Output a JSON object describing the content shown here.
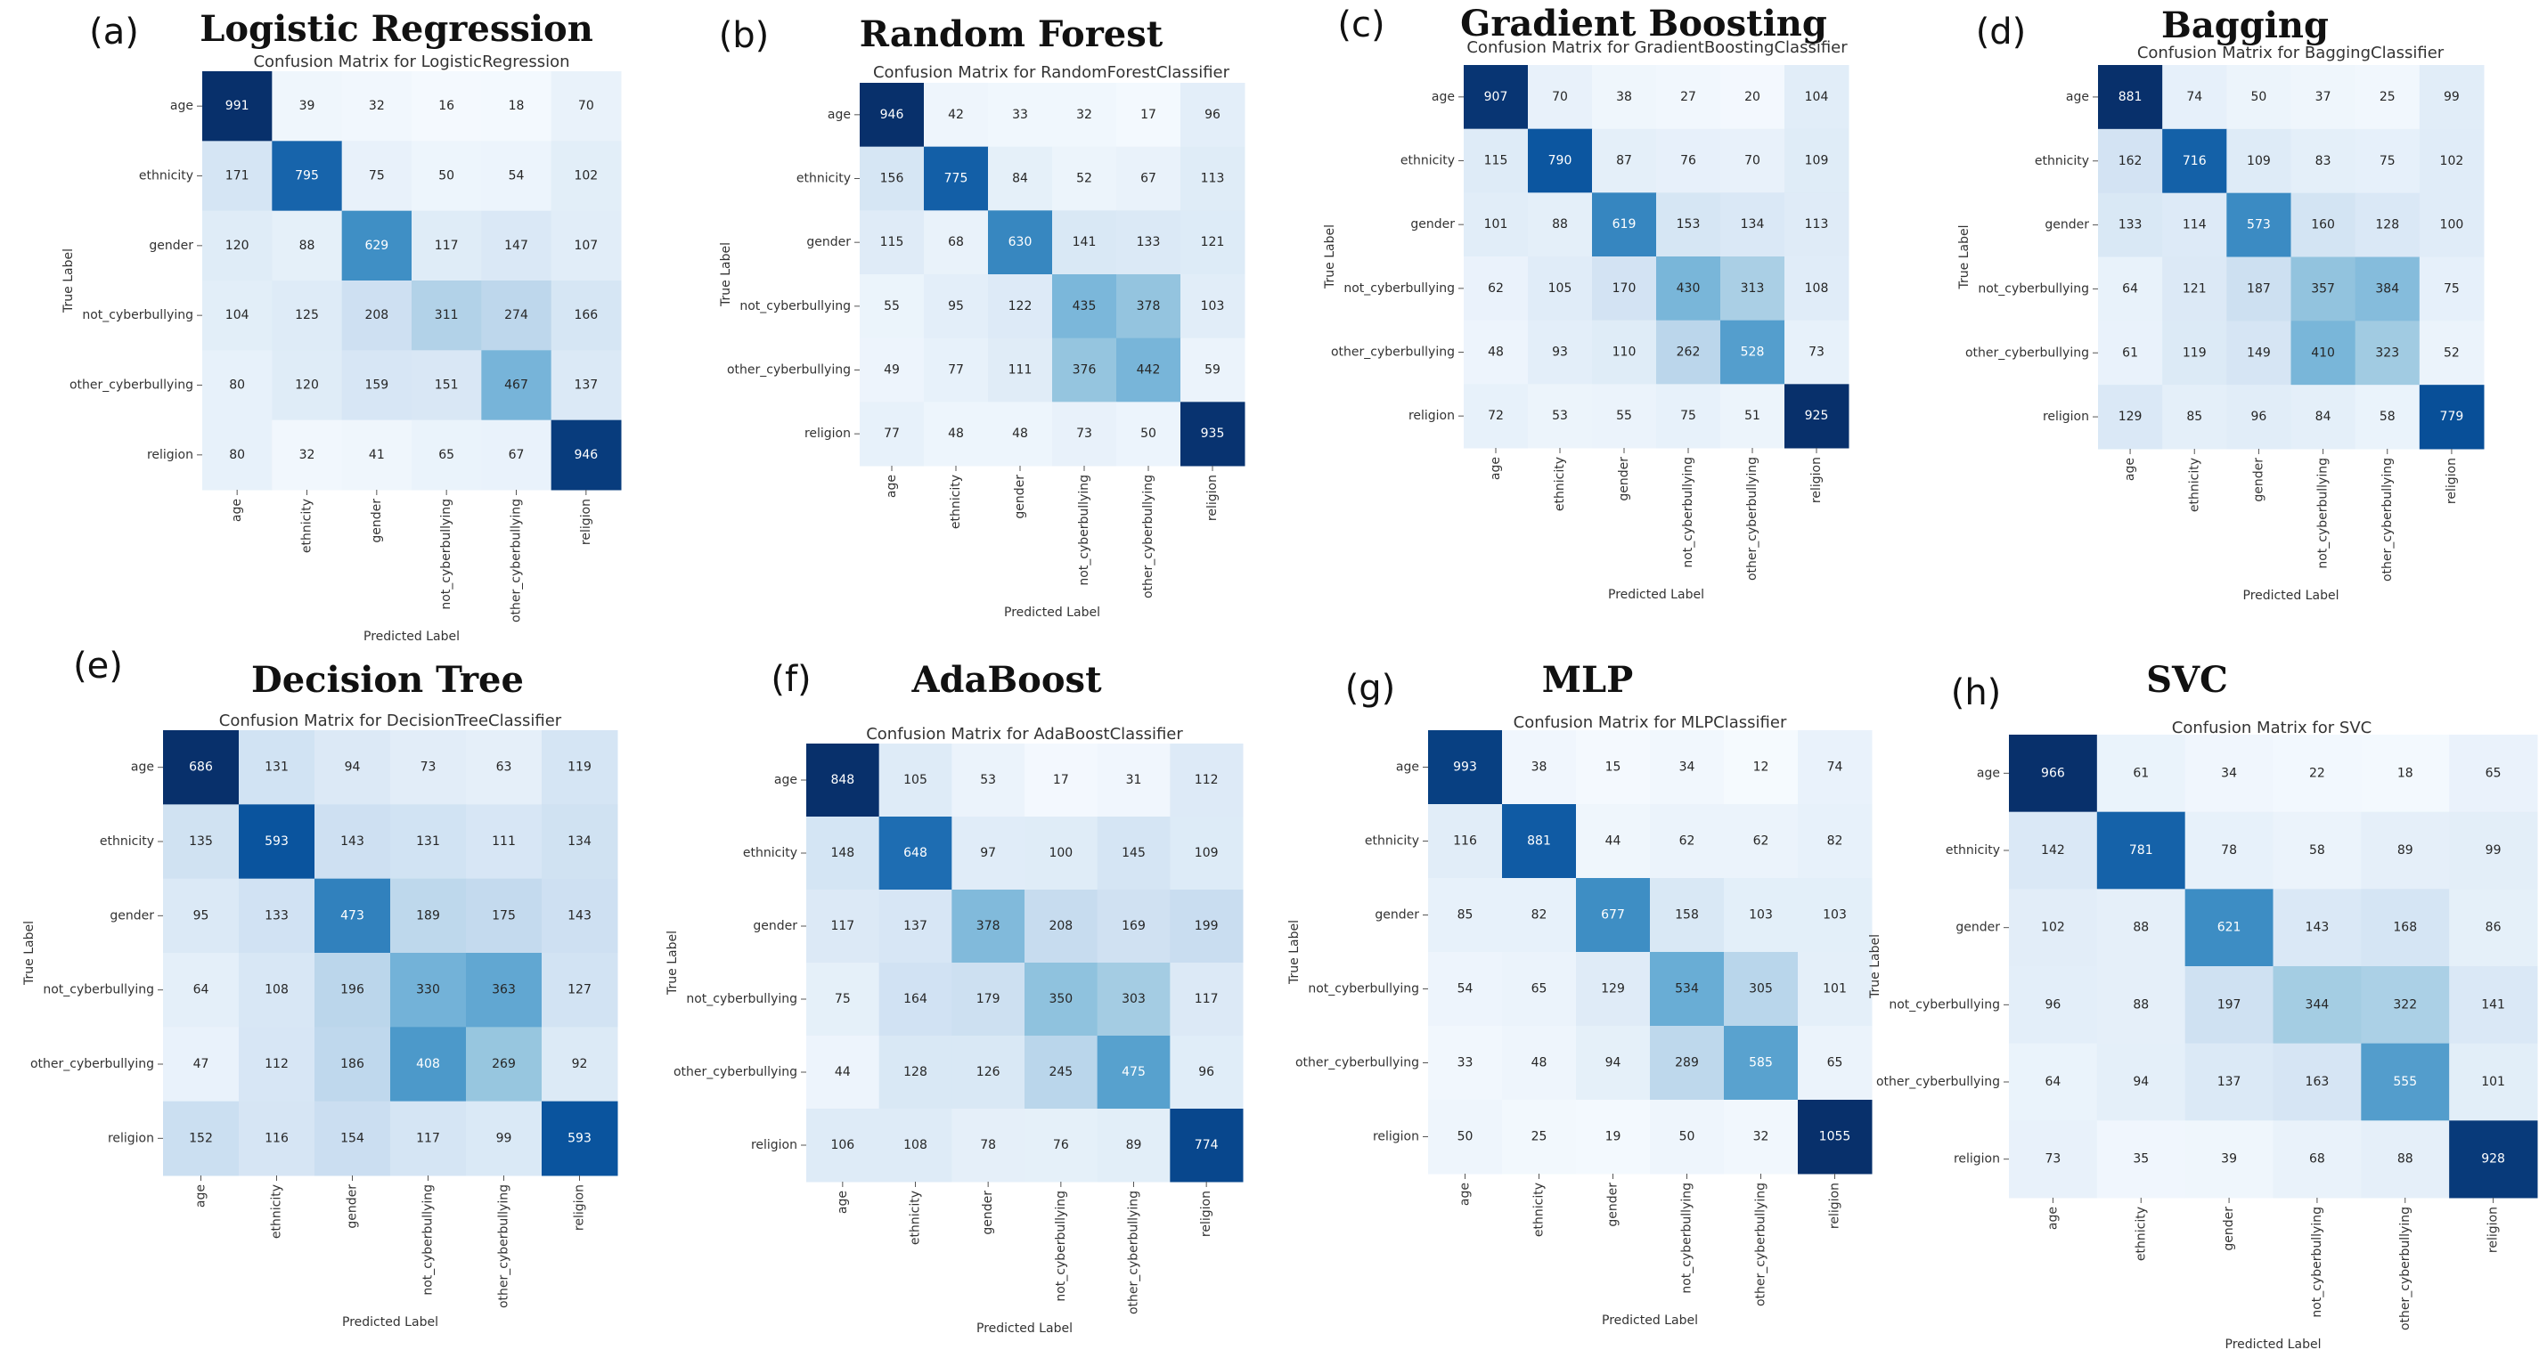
{
  "chart_data": [
    {
      "type": "heatmap",
      "panel_letter": "(a)",
      "panel_title": "Logistic Regression",
      "title": "Confusion Matrix for LogisticRegression",
      "xlabel": "Predicted Label",
      "ylabel": "True Label",
      "categories": [
        "age",
        "ethnicity",
        "gender",
        "not_cyberbullying",
        "other_cyberbullying",
        "religion"
      ],
      "matrix": [
        [
          991,
          39,
          32,
          16,
          18,
          70
        ],
        [
          171,
          795,
          75,
          50,
          54,
          102
        ],
        [
          120,
          88,
          629,
          117,
          147,
          107
        ],
        [
          104,
          125,
          208,
          311,
          274,
          166
        ],
        [
          80,
          120,
          159,
          151,
          467,
          137
        ],
        [
          80,
          32,
          41,
          65,
          67,
          946
        ]
      ]
    },
    {
      "type": "heatmap",
      "panel_letter": "(b)",
      "panel_title": "Random Forest",
      "title": "Confusion Matrix for RandomForestClassifier",
      "xlabel": "Predicted Label",
      "ylabel": "True Label",
      "categories": [
        "age",
        "ethnicity",
        "gender",
        "not_cyberbullying",
        "other_cyberbullying",
        "religion"
      ],
      "matrix": [
        [
          946,
          42,
          33,
          32,
          17,
          96
        ],
        [
          156,
          775,
          84,
          52,
          67,
          113
        ],
        [
          115,
          68,
          630,
          141,
          133,
          121
        ],
        [
          55,
          95,
          122,
          435,
          378,
          103
        ],
        [
          49,
          77,
          111,
          376,
          442,
          59
        ],
        [
          77,
          48,
          48,
          73,
          50,
          935
        ]
      ]
    },
    {
      "type": "heatmap",
      "panel_letter": "(c)",
      "panel_title": "Gradient Boosting",
      "title": "Confusion Matrix for GradientBoostingClassifier",
      "xlabel": "Predicted Label",
      "ylabel": "True Label",
      "categories": [
        "age",
        "ethnicity",
        "gender",
        "not_cyberbullying",
        "other_cyberbullying",
        "religion"
      ],
      "matrix": [
        [
          907,
          70,
          38,
          27,
          20,
          104
        ],
        [
          115,
          790,
          87,
          76,
          70,
          109
        ],
        [
          101,
          88,
          619,
          153,
          134,
          113
        ],
        [
          62,
          105,
          170,
          430,
          313,
          108
        ],
        [
          48,
          93,
          110,
          262,
          528,
          73
        ],
        [
          72,
          53,
          55,
          75,
          51,
          925
        ]
      ]
    },
    {
      "type": "heatmap",
      "panel_letter": "(d)",
      "panel_title": "Bagging",
      "title": "Confusion Matrix for BaggingClassifier",
      "xlabel": "Predicted Label",
      "ylabel": "True Label",
      "categories": [
        "age",
        "ethnicity",
        "gender",
        "not_cyberbullying",
        "other_cyberbullying",
        "religion"
      ],
      "matrix": [
        [
          881,
          74,
          50,
          37,
          25,
          99
        ],
        [
          162,
          716,
          109,
          83,
          75,
          102
        ],
        [
          133,
          114,
          573,
          160,
          128,
          100
        ],
        [
          64,
          121,
          187,
          357,
          384,
          75
        ],
        [
          61,
          119,
          149,
          410,
          323,
          52
        ],
        [
          129,
          85,
          96,
          84,
          58,
          779
        ]
      ]
    },
    {
      "type": "heatmap",
      "panel_letter": "(e)",
      "panel_title": "Decision Tree",
      "title": "Confusion Matrix for DecisionTreeClassifier",
      "xlabel": "Predicted Label",
      "ylabel": "True Label",
      "categories": [
        "age",
        "ethnicity",
        "gender",
        "not_cyberbullying",
        "other_cyberbullying",
        "religion"
      ],
      "matrix": [
        [
          686,
          131,
          94,
          73,
          63,
          119
        ],
        [
          135,
          593,
          143,
          131,
          111,
          134
        ],
        [
          95,
          133,
          473,
          189,
          175,
          143
        ],
        [
          64,
          108,
          196,
          330,
          363,
          127
        ],
        [
          47,
          112,
          186,
          408,
          269,
          92
        ],
        [
          152,
          116,
          154,
          117,
          99,
          593
        ]
      ]
    },
    {
      "type": "heatmap",
      "panel_letter": "(f)",
      "panel_title": "AdaBoost",
      "title": "Confusion Matrix for AdaBoostClassifier",
      "xlabel": "Predicted Label",
      "ylabel": "True Label",
      "categories": [
        "age",
        "ethnicity",
        "gender",
        "not_cyberbullying",
        "other_cyberbullying",
        "religion"
      ],
      "matrix": [
        [
          848,
          105,
          53,
          17,
          31,
          112
        ],
        [
          148,
          648,
          97,
          100,
          145,
          109
        ],
        [
          117,
          137,
          378,
          208,
          169,
          199
        ],
        [
          75,
          164,
          179,
          350,
          303,
          117
        ],
        [
          44,
          128,
          126,
          245,
          475,
          96
        ],
        [
          106,
          108,
          78,
          76,
          89,
          774
        ]
      ]
    },
    {
      "type": "heatmap",
      "panel_letter": "(g)",
      "panel_title": "MLP",
      "title": "Confusion Matrix for MLPClassifier",
      "xlabel": "Predicted Label",
      "ylabel": "True Label",
      "categories": [
        "age",
        "ethnicity",
        "gender",
        "not_cyberbullying",
        "other_cyberbullying",
        "religion"
      ],
      "matrix": [
        [
          993,
          38,
          15,
          34,
          12,
          74
        ],
        [
          116,
          881,
          44,
          62,
          62,
          82
        ],
        [
          85,
          82,
          677,
          158,
          103,
          103
        ],
        [
          54,
          65,
          129,
          534,
          305,
          101
        ],
        [
          33,
          48,
          94,
          289,
          585,
          65
        ],
        [
          50,
          25,
          19,
          50,
          32,
          1055
        ]
      ]
    },
    {
      "type": "heatmap",
      "panel_letter": "(h)",
      "panel_title": "SVC",
      "title": "Confusion Matrix for SVC",
      "xlabel": "Predicted Label",
      "ylabel": "True Label",
      "categories": [
        "age",
        "ethnicity",
        "gender",
        "not_cyberbullying",
        "other_cyberbullying",
        "religion"
      ],
      "matrix": [
        [
          966,
          61,
          34,
          22,
          18,
          65
        ],
        [
          142,
          781,
          78,
          58,
          89,
          99
        ],
        [
          102,
          88,
          621,
          143,
          168,
          86
        ],
        [
          96,
          88,
          197,
          344,
          322,
          141
        ],
        [
          64,
          94,
          137,
          163,
          555,
          101
        ],
        [
          73,
          35,
          39,
          68,
          88,
          928
        ]
      ]
    }
  ]
}
